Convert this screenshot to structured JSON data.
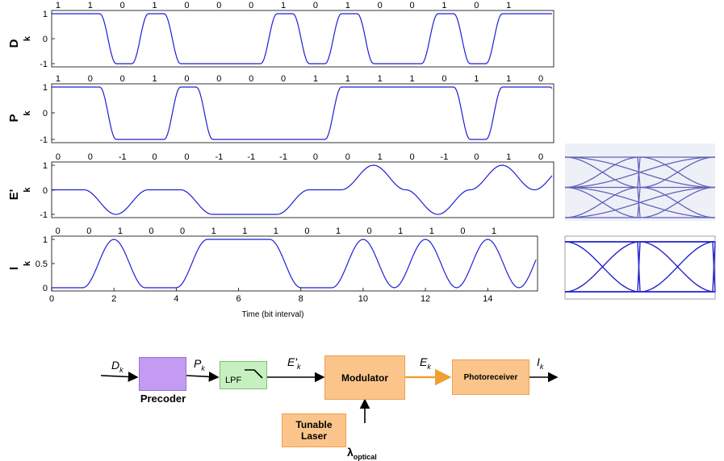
{
  "colors": {
    "trace": "#1f1fd6",
    "modulator_fill": "#fbc48a",
    "modulator_border": "#f0a050",
    "precoder_fill": "#c39bf3",
    "lpf_fill": "#c6f0c0",
    "optical_arrow": "#f0a030"
  },
  "plots": {
    "xlabel": "Time (bit interval)",
    "x_ticks": [
      "0",
      "2",
      "4",
      "6",
      "8",
      "10",
      "12",
      "14"
    ],
    "panels": [
      {
        "id": "D",
        "ylabel_main": "D",
        "ylabel_sub": "k",
        "y_ticks": [
          "-1",
          "0",
          "1"
        ],
        "bits": [
          "1",
          "1",
          "0",
          "1",
          "0",
          "0",
          "0",
          "1",
          "0",
          "1",
          "0",
          "0",
          "1",
          "0",
          "1"
        ],
        "trace_levels": [
          1,
          1,
          -1,
          1,
          -1,
          -1,
          -1,
          1,
          -1,
          1,
          -1,
          -1,
          1,
          -1,
          1,
          1
        ],
        "show_xaxis": false
      },
      {
        "id": "P",
        "ylabel_main": "P",
        "ylabel_sub": "k",
        "y_ticks": [
          "-1",
          "0",
          "1"
        ],
        "bits": [
          "1",
          "0",
          "0",
          "1",
          "0",
          "0",
          "0",
          "0",
          "1",
          "1",
          "1",
          "1",
          "0",
          "1",
          "1",
          "0"
        ],
        "trace_levels": [
          1,
          1,
          -1,
          -1,
          1,
          -1,
          -1,
          -1,
          -1,
          1,
          1,
          1,
          1,
          -1,
          1,
          1,
          -1,
          1
        ],
        "show_xaxis": false
      },
      {
        "id": "E",
        "ylabel_main": "E'",
        "ylabel_sub": "k",
        "y_ticks": [
          "-1",
          "0",
          "1"
        ],
        "bits": [
          "0",
          "0",
          "-1",
          "0",
          "0",
          "-1",
          "-1",
          "-1",
          "0",
          "0",
          "1",
          "0",
          "-1",
          "0",
          "1",
          "0"
        ],
        "trace_levels": [
          0,
          0,
          -1,
          0,
          0,
          -1,
          -1,
          -1,
          0,
          0,
          1,
          0,
          -1,
          0,
          1,
          0
        ],
        "show_xaxis": false
      },
      {
        "id": "I",
        "ylabel_main": "I",
        "ylabel_sub": "k",
        "y_ticks": [
          "0",
          "0.5",
          "1"
        ],
        "bits": [
          "0",
          "0",
          "1",
          "0",
          "0",
          "1",
          "1",
          "1",
          "0",
          "1",
          "0",
          "1",
          "1",
          "0",
          "1"
        ],
        "trace_levels": [
          0,
          0,
          1,
          0,
          0,
          1,
          1,
          1,
          0,
          0,
          1,
          0,
          1,
          0,
          1,
          0
        ],
        "show_xaxis": true
      }
    ]
  },
  "diagram": {
    "signal_D": "D",
    "signal_P": "P",
    "signal_E_prime": "E'",
    "signal_E": "E",
    "signal_I": "I",
    "signal_sub": "k",
    "precoder_label": "Precoder",
    "lpf_label": "LPF",
    "modulator_label": "Modulator",
    "photoreceiver_label": "Photoreceiver",
    "laser_label_line1": "Tunable",
    "laser_label_line2": "Laser",
    "lambda_symbol": "λ",
    "lambda_sub": "optical"
  }
}
